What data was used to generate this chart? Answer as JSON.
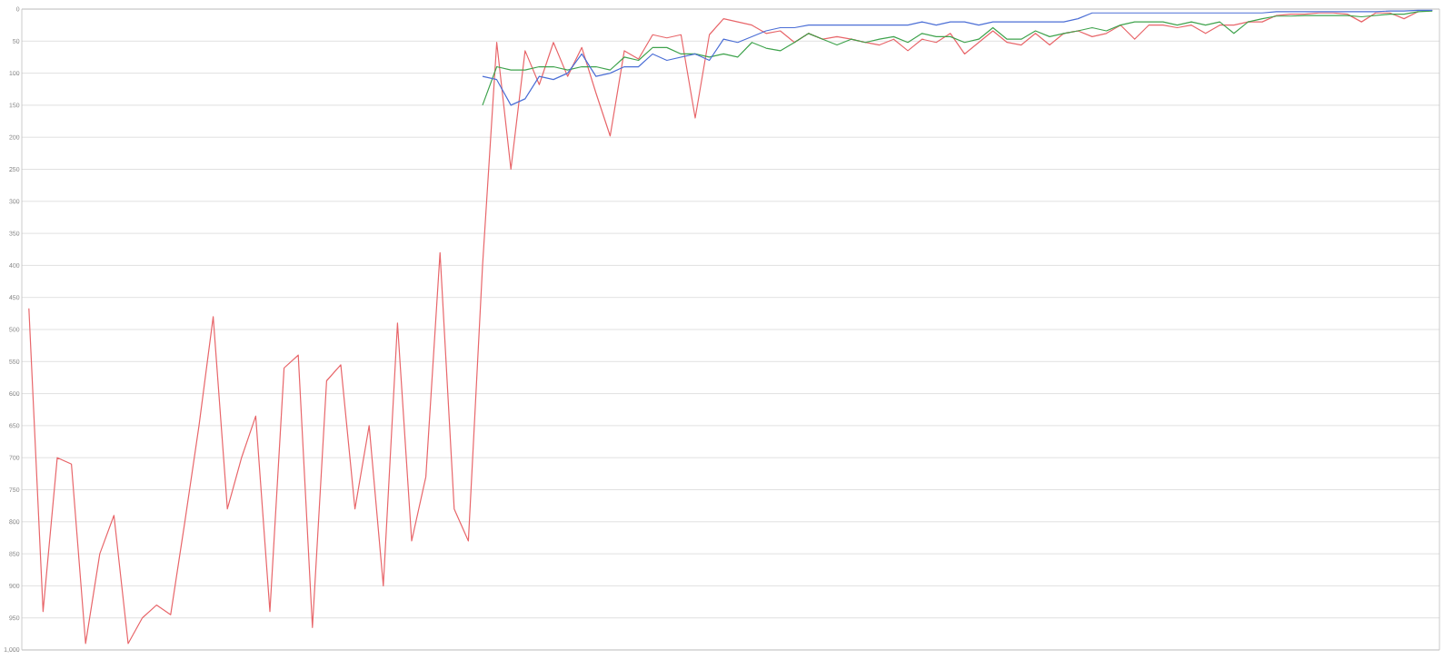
{
  "chart_data": {
    "type": "line",
    "categories": [
      null,
      null,
      null,
      null,
      null,
      null,
      null,
      null,
      null,
      null,
      null,
      null,
      null,
      null,
      null,
      null,
      null,
      null,
      null,
      null,
      null,
      null,
      null,
      null,
      null,
      null,
      null,
      null,
      null,
      null,
      null,
      null,
      null,
      null,
      null,
      null,
      null,
      null,
      null,
      null,
      null,
      null,
      null,
      null,
      null,
      null,
      null,
      null,
      null,
      null,
      null,
      null,
      null,
      null,
      null,
      null,
      null,
      null,
      null,
      null,
      null,
      null,
      null,
      null,
      null,
      null,
      null,
      null,
      null,
      null,
      null,
      null,
      null,
      null,
      null,
      null,
      null,
      null,
      null,
      null,
      null,
      null,
      null,
      null,
      null,
      null,
      null,
      null,
      null,
      null,
      null,
      null,
      null,
      null,
      null,
      null,
      null,
      null,
      null,
      null
    ],
    "ylim": [
      1000,
      0
    ],
    "yticks": [
      0,
      50,
      100,
      150,
      200,
      250,
      300,
      350,
      400,
      450,
      500,
      550,
      600,
      650,
      700,
      750,
      800,
      850,
      900,
      950,
      {
        "value": 1000,
        "label": "1,000"
      }
    ],
    "grid": "y",
    "tick_labels": "y",
    "series": [
      {
        "color": "#e8666a",
        "values": [
          467,
          940,
          700,
          710,
          990,
          850,
          790,
          990,
          950,
          930,
          945,
          800,
          650,
          480,
          780,
          700,
          635,
          940,
          560,
          540,
          965,
          580,
          555,
          780,
          650,
          900,
          490,
          830,
          730,
          380,
          780,
          830,
          400,
          52,
          250,
          65,
          118,
          52,
          105,
          60,
          131,
          198,
          65,
          78,
          40,
          45,
          40,
          170,
          40,
          15,
          20,
          25,
          38,
          34,
          52,
          38,
          47,
          43,
          47,
          52,
          56,
          47,
          65,
          47,
          52,
          38,
          70,
          52,
          34,
          52,
          56,
          38,
          56,
          38,
          34,
          43,
          38,
          25,
          47,
          25,
          25,
          29,
          25,
          38,
          25,
          25,
          20,
          20,
          10,
          8,
          8,
          6,
          6,
          8,
          20,
          6,
          6,
          15,
          4,
          null
        ]
      },
      {
        "color": "#3fa34d",
        "values": [
          null,
          null,
          null,
          null,
          null,
          null,
          null,
          null,
          null,
          null,
          null,
          null,
          null,
          null,
          null,
          null,
          null,
          null,
          null,
          null,
          null,
          null,
          null,
          null,
          null,
          null,
          null,
          null,
          null,
          null,
          null,
          null,
          150,
          90,
          95,
          95,
          90,
          90,
          95,
          90,
          90,
          95,
          75,
          80,
          60,
          60,
          70,
          70,
          75,
          70,
          75,
          52,
          61,
          65,
          52,
          38,
          47,
          56,
          47,
          52,
          47,
          43,
          52,
          38,
          43,
          43,
          52,
          47,
          29,
          47,
          47,
          34,
          43,
          38,
          34,
          29,
          34,
          25,
          20,
          20,
          20,
          25,
          20,
          25,
          20,
          38,
          20,
          15,
          11,
          11,
          10,
          10,
          10,
          10,
          12,
          10,
          8,
          8,
          4,
          3
        ]
      },
      {
        "color": "#4c6fd6",
        "values": [
          null,
          null,
          null,
          null,
          null,
          null,
          null,
          null,
          null,
          null,
          null,
          null,
          null,
          null,
          null,
          null,
          null,
          null,
          null,
          null,
          null,
          null,
          null,
          null,
          null,
          null,
          null,
          null,
          null,
          null,
          null,
          null,
          105,
          110,
          150,
          140,
          105,
          110,
          100,
          70,
          105,
          100,
          90,
          90,
          70,
          80,
          75,
          70,
          80,
          47,
          52,
          43,
          34,
          29,
          29,
          25,
          25,
          25,
          25,
          25,
          25,
          25,
          25,
          20,
          25,
          20,
          20,
          25,
          20,
          20,
          20,
          20,
          20,
          20,
          15,
          6,
          6,
          6,
          6,
          6,
          6,
          6,
          6,
          6,
          6,
          6,
          6,
          6,
          4,
          4,
          4,
          4,
          4,
          4,
          4,
          4,
          3,
          3,
          2,
          2
        ]
      }
    ]
  }
}
